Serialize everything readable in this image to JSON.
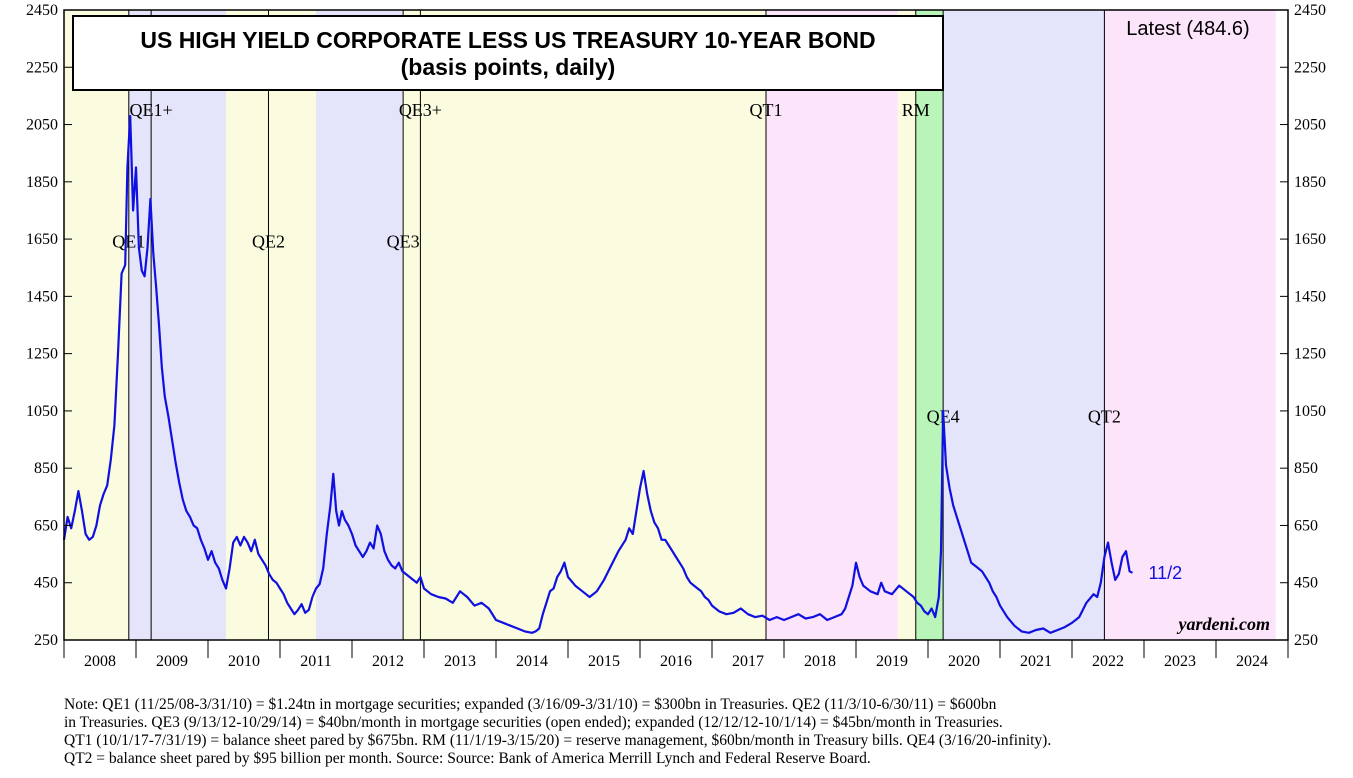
{
  "chart_data": {
    "type": "line",
    "title": "US HIGH YIELD CORPORATE LESS US TREASURY 10-YEAR BOND",
    "subtitle": "(basis points, daily)",
    "latest_label": "Latest (484.6)",
    "latest_date_label": "11/2",
    "source_mark": "yardeni.com",
    "ylim": [
      250,
      2450
    ],
    "yticks": [
      250,
      450,
      650,
      850,
      1050,
      1250,
      1450,
      1650,
      1850,
      2050,
      2250,
      2450
    ],
    "xlim": [
      2008.0,
      2025.0
    ],
    "xtick_labels": [
      "2008",
      "2009",
      "2010",
      "2011",
      "2012",
      "2013",
      "2014",
      "2015",
      "2016",
      "2017",
      "2018",
      "2019",
      "2020",
      "2021",
      "2022",
      "2023",
      "2024"
    ],
    "shaded_periods": [
      {
        "start": 2008.0,
        "end": 2008.9,
        "color": "#fbfbdf"
      },
      {
        "start": 2008.9,
        "end": 2010.25,
        "color": "#e4e4fa"
      },
      {
        "start": 2010.25,
        "end": 2011.5,
        "color": "#fbfbdf"
      },
      {
        "start": 2011.5,
        "end": 2012.7,
        "color": "#e4e4fa"
      },
      {
        "start": 2012.7,
        "end": 2014.83,
        "color": "#fbfbdf"
      },
      {
        "start": 2014.83,
        "end": 2017.75,
        "color": "#fbfbdf"
      },
      {
        "start": 2017.75,
        "end": 2019.58,
        "color": "#fce4fb"
      },
      {
        "start": 2019.58,
        "end": 2019.83,
        "color": "#fbfbdf"
      },
      {
        "start": 2019.83,
        "end": 2020.21,
        "color": "#b9f5b9"
      },
      {
        "start": 2020.21,
        "end": 2022.45,
        "color": "#e4e4fa"
      },
      {
        "start": 2022.45,
        "end": 2024.83,
        "color": "#fce4fb"
      }
    ],
    "event_lines": [
      2008.9,
      2009.21,
      2010.84,
      2012.71,
      2012.95,
      2017.75,
      2019.83,
      2020.21,
      2022.45
    ],
    "event_labels": [
      {
        "text": "QE1+",
        "x": 2009.21,
        "y": 2080
      },
      {
        "text": "QE1",
        "x": 2008.9,
        "y": 1620
      },
      {
        "text": "QE2",
        "x": 2010.84,
        "y": 1620
      },
      {
        "text": "QE3",
        "x": 2012.71,
        "y": 1620
      },
      {
        "text": "QE3+",
        "x": 2012.95,
        "y": 2080
      },
      {
        "text": "QT1",
        "x": 2017.75,
        "y": 2080
      },
      {
        "text": "RM",
        "x": 2019.83,
        "y": 2080
      },
      {
        "text": "QE4",
        "x": 2020.21,
        "y": 1010
      },
      {
        "text": "QT2",
        "x": 2022.45,
        "y": 1010
      }
    ],
    "series": [
      {
        "color": "#1010e0",
        "points": [
          [
            2008.0,
            600
          ],
          [
            2008.05,
            680
          ],
          [
            2008.1,
            640
          ],
          [
            2008.15,
            700
          ],
          [
            2008.2,
            770
          ],
          [
            2008.25,
            700
          ],
          [
            2008.3,
            620
          ],
          [
            2008.35,
            600
          ],
          [
            2008.4,
            610
          ],
          [
            2008.45,
            650
          ],
          [
            2008.5,
            720
          ],
          [
            2008.55,
            760
          ],
          [
            2008.6,
            790
          ],
          [
            2008.65,
            880
          ],
          [
            2008.7,
            1000
          ],
          [
            2008.75,
            1250
          ],
          [
            2008.8,
            1530
          ],
          [
            2008.85,
            1560
          ],
          [
            2008.88,
            1900
          ],
          [
            2008.92,
            2080
          ],
          [
            2008.96,
            1750
          ],
          [
            2009.0,
            1900
          ],
          [
            2009.04,
            1620
          ],
          [
            2009.08,
            1540
          ],
          [
            2009.12,
            1520
          ],
          [
            2009.16,
            1620
          ],
          [
            2009.2,
            1790
          ],
          [
            2009.24,
            1600
          ],
          [
            2009.28,
            1480
          ],
          [
            2009.32,
            1350
          ],
          [
            2009.36,
            1200
          ],
          [
            2009.4,
            1100
          ],
          [
            2009.45,
            1030
          ],
          [
            2009.5,
            950
          ],
          [
            2009.55,
            870
          ],
          [
            2009.6,
            800
          ],
          [
            2009.65,
            740
          ],
          [
            2009.7,
            700
          ],
          [
            2009.75,
            680
          ],
          [
            2009.8,
            650
          ],
          [
            2009.85,
            640
          ],
          [
            2009.9,
            600
          ],
          [
            2009.95,
            570
          ],
          [
            2010.0,
            530
          ],
          [
            2010.05,
            560
          ],
          [
            2010.1,
            520
          ],
          [
            2010.15,
            500
          ],
          [
            2010.2,
            460
          ],
          [
            2010.25,
            430
          ],
          [
            2010.3,
            500
          ],
          [
            2010.35,
            590
          ],
          [
            2010.4,
            610
          ],
          [
            2010.45,
            580
          ],
          [
            2010.5,
            610
          ],
          [
            2010.55,
            590
          ],
          [
            2010.6,
            560
          ],
          [
            2010.65,
            600
          ],
          [
            2010.7,
            550
          ],
          [
            2010.75,
            530
          ],
          [
            2010.8,
            510
          ],
          [
            2010.85,
            480
          ],
          [
            2010.9,
            460
          ],
          [
            2010.95,
            450
          ],
          [
            2011.0,
            430
          ],
          [
            2011.05,
            410
          ],
          [
            2011.1,
            380
          ],
          [
            2011.15,
            360
          ],
          [
            2011.2,
            340
          ],
          [
            2011.25,
            355
          ],
          [
            2011.3,
            375
          ],
          [
            2011.35,
            345
          ],
          [
            2011.4,
            355
          ],
          [
            2011.45,
            400
          ],
          [
            2011.5,
            430
          ],
          [
            2011.55,
            445
          ],
          [
            2011.6,
            500
          ],
          [
            2011.65,
            620
          ],
          [
            2011.7,
            720
          ],
          [
            2011.74,
            830
          ],
          [
            2011.78,
            700
          ],
          [
            2011.82,
            650
          ],
          [
            2011.86,
            700
          ],
          [
            2011.9,
            670
          ],
          [
            2011.95,
            650
          ],
          [
            2012.0,
            620
          ],
          [
            2012.05,
            580
          ],
          [
            2012.1,
            560
          ],
          [
            2012.15,
            540
          ],
          [
            2012.2,
            560
          ],
          [
            2012.25,
            590
          ],
          [
            2012.3,
            570
          ],
          [
            2012.35,
            650
          ],
          [
            2012.4,
            620
          ],
          [
            2012.45,
            560
          ],
          [
            2012.5,
            530
          ],
          [
            2012.55,
            510
          ],
          [
            2012.6,
            500
          ],
          [
            2012.65,
            520
          ],
          [
            2012.7,
            490
          ],
          [
            2012.75,
            480
          ],
          [
            2012.8,
            470
          ],
          [
            2012.85,
            460
          ],
          [
            2012.9,
            450
          ],
          [
            2012.95,
            470
          ],
          [
            2013.0,
            430
          ],
          [
            2013.1,
            410
          ],
          [
            2013.2,
            400
          ],
          [
            2013.3,
            395
          ],
          [
            2013.4,
            380
          ],
          [
            2013.5,
            420
          ],
          [
            2013.6,
            400
          ],
          [
            2013.7,
            370
          ],
          [
            2013.8,
            380
          ],
          [
            2013.9,
            360
          ],
          [
            2014.0,
            320
          ],
          [
            2014.1,
            310
          ],
          [
            2014.2,
            300
          ],
          [
            2014.3,
            290
          ],
          [
            2014.4,
            280
          ],
          [
            2014.5,
            275
          ],
          [
            2014.55,
            280
          ],
          [
            2014.6,
            290
          ],
          [
            2014.65,
            340
          ],
          [
            2014.7,
            380
          ],
          [
            2014.75,
            420
          ],
          [
            2014.8,
            430
          ],
          [
            2014.85,
            470
          ],
          [
            2014.9,
            490
          ],
          [
            2014.95,
            520
          ],
          [
            2015.0,
            470
          ],
          [
            2015.1,
            440
          ],
          [
            2015.2,
            420
          ],
          [
            2015.3,
            400
          ],
          [
            2015.4,
            420
          ],
          [
            2015.5,
            460
          ],
          [
            2015.6,
            510
          ],
          [
            2015.7,
            560
          ],
          [
            2015.8,
            600
          ],
          [
            2015.85,
            640
          ],
          [
            2015.9,
            620
          ],
          [
            2015.95,
            700
          ],
          [
            2016.0,
            780
          ],
          [
            2016.05,
            840
          ],
          [
            2016.1,
            760
          ],
          [
            2016.15,
            700
          ],
          [
            2016.2,
            660
          ],
          [
            2016.25,
            640
          ],
          [
            2016.3,
            600
          ],
          [
            2016.35,
            600
          ],
          [
            2016.4,
            580
          ],
          [
            2016.45,
            560
          ],
          [
            2016.5,
            540
          ],
          [
            2016.55,
            520
          ],
          [
            2016.6,
            500
          ],
          [
            2016.65,
            470
          ],
          [
            2016.7,
            450
          ],
          [
            2016.75,
            440
          ],
          [
            2016.8,
            430
          ],
          [
            2016.85,
            420
          ],
          [
            2016.9,
            400
          ],
          [
            2016.95,
            390
          ],
          [
            2017.0,
            370
          ],
          [
            2017.1,
            350
          ],
          [
            2017.2,
            340
          ],
          [
            2017.3,
            345
          ],
          [
            2017.4,
            360
          ],
          [
            2017.5,
            340
          ],
          [
            2017.6,
            330
          ],
          [
            2017.7,
            335
          ],
          [
            2017.8,
            320
          ],
          [
            2017.9,
            330
          ],
          [
            2018.0,
            320
          ],
          [
            2018.1,
            330
          ],
          [
            2018.2,
            340
          ],
          [
            2018.3,
            325
          ],
          [
            2018.4,
            330
          ],
          [
            2018.5,
            340
          ],
          [
            2018.6,
            320
          ],
          [
            2018.7,
            330
          ],
          [
            2018.8,
            340
          ],
          [
            2018.85,
            360
          ],
          [
            2018.9,
            400
          ],
          [
            2018.95,
            440
          ],
          [
            2019.0,
            520
          ],
          [
            2019.05,
            470
          ],
          [
            2019.1,
            440
          ],
          [
            2019.2,
            420
          ],
          [
            2019.3,
            410
          ],
          [
            2019.35,
            450
          ],
          [
            2019.4,
            420
          ],
          [
            2019.5,
            410
          ],
          [
            2019.6,
            440
          ],
          [
            2019.7,
            420
          ],
          [
            2019.8,
            400
          ],
          [
            2019.85,
            380
          ],
          [
            2019.9,
            370
          ],
          [
            2019.95,
            350
          ],
          [
            2020.0,
            340
          ],
          [
            2020.05,
            360
          ],
          [
            2020.1,
            330
          ],
          [
            2020.15,
            400
          ],
          [
            2020.18,
            560
          ],
          [
            2020.21,
            1050
          ],
          [
            2020.25,
            860
          ],
          [
            2020.3,
            780
          ],
          [
            2020.35,
            720
          ],
          [
            2020.4,
            680
          ],
          [
            2020.45,
            640
          ],
          [
            2020.5,
            600
          ],
          [
            2020.55,
            560
          ],
          [
            2020.6,
            520
          ],
          [
            2020.65,
            510
          ],
          [
            2020.7,
            500
          ],
          [
            2020.75,
            490
          ],
          [
            2020.8,
            470
          ],
          [
            2020.85,
            450
          ],
          [
            2020.9,
            420
          ],
          [
            2020.95,
            400
          ],
          [
            2021.0,
            370
          ],
          [
            2021.1,
            330
          ],
          [
            2021.2,
            300
          ],
          [
            2021.3,
            280
          ],
          [
            2021.4,
            275
          ],
          [
            2021.5,
            285
          ],
          [
            2021.6,
            290
          ],
          [
            2021.7,
            275
          ],
          [
            2021.8,
            285
          ],
          [
            2021.9,
            295
          ],
          [
            2022.0,
            310
          ],
          [
            2022.1,
            330
          ],
          [
            2022.2,
            380
          ],
          [
            2022.3,
            410
          ],
          [
            2022.35,
            400
          ],
          [
            2022.4,
            450
          ],
          [
            2022.45,
            540
          ],
          [
            2022.5,
            590
          ],
          [
            2022.55,
            520
          ],
          [
            2022.6,
            460
          ],
          [
            2022.65,
            480
          ],
          [
            2022.7,
            540
          ],
          [
            2022.75,
            560
          ],
          [
            2022.8,
            490
          ],
          [
            2022.84,
            484.6
          ]
        ]
      }
    ]
  },
  "note_lines": [
    "Note: QE1 (11/25/08-3/31/10) = $1.24tn in mortgage securities; expanded (3/16/09-3/31/10) = $300bn in Treasuries. QE2 (11/3/10-6/30/11) = $600bn",
    "in Treasuries. QE3 (9/13/12-10/29/14) = $40bn/month in mortgage securities (open ended); expanded (12/12/12-10/1/14) = $45bn/month in Treasuries.",
    "QT1 (10/1/17-7/31/19) = balance sheet pared by $675bn. RM (11/1/19-3/15/20) = reserve management, $60bn/month in Treasury bills. QE4 (3/16/20-infinity).",
    "QT2 = balance sheet pared by $95 billion per month. Source: Source: Bank of America Merrill Lynch and Federal Reserve Board."
  ]
}
